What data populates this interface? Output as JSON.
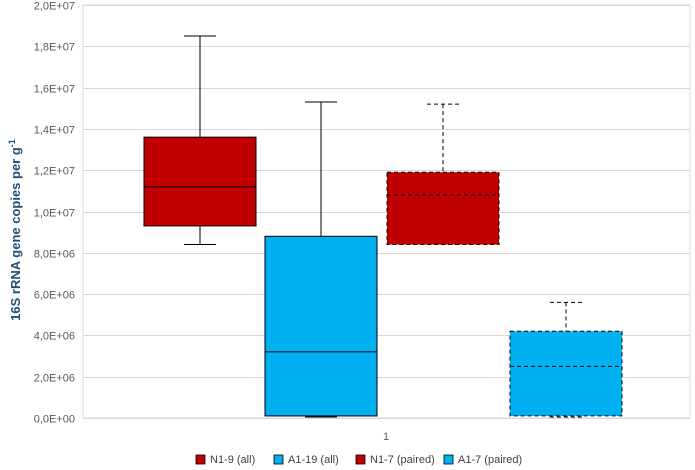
{
  "chart_data": {
    "type": "boxplot",
    "title": "",
    "xlabel": "",
    "ylabel": "16S rRNA gene copies per g",
    "ylabel_sup": "-1",
    "ylim": [
      0,
      20000000
    ],
    "y_ticks": [
      {
        "value": 0,
        "label": "0,0E+00"
      },
      {
        "value": 2000000,
        "label": "2,0E+06"
      },
      {
        "value": 4000000,
        "label": "4,0E+06"
      },
      {
        "value": 6000000,
        "label": "6,0E+06"
      },
      {
        "value": 8000000,
        "label": "8,0E+06"
      },
      {
        "value": 10000000,
        "label": "1,0E+07"
      },
      {
        "value": 12000000,
        "label": "1,2E+07"
      },
      {
        "value": 14000000,
        "label": "1,4E+07"
      },
      {
        "value": 16000000,
        "label": "1,6E+07"
      },
      {
        "value": 18000000,
        "label": "1,8E+07"
      },
      {
        "value": 20000000,
        "label": "2,0E+07"
      }
    ],
    "x_category": "1",
    "grid": true,
    "legend_position": "bottom",
    "series": [
      {
        "name": "N1-9 (all)",
        "color": "#c00000",
        "dashed": false,
        "min": 8400000,
        "q1": 9300000,
        "median": 11200000,
        "q3": 13600000,
        "max": 18500000
      },
      {
        "name": "A1-19 (all)",
        "color": "#00b0f0",
        "dashed": false,
        "min": 50000,
        "q1": 100000,
        "median": 3200000,
        "q3": 8800000,
        "max": 15300000
      },
      {
        "name": "N1-7 (paired)",
        "color": "#c00000",
        "dashed": true,
        "min": 8400000,
        "q1": 8400000,
        "median": 10800000,
        "q3": 11900000,
        "max": 15200000
      },
      {
        "name": "A1-7 (paired)",
        "color": "#00b0f0",
        "dashed": true,
        "min": 50000,
        "q1": 100000,
        "median": 2500000,
        "q3": 4200000,
        "max": 5600000
      }
    ]
  }
}
